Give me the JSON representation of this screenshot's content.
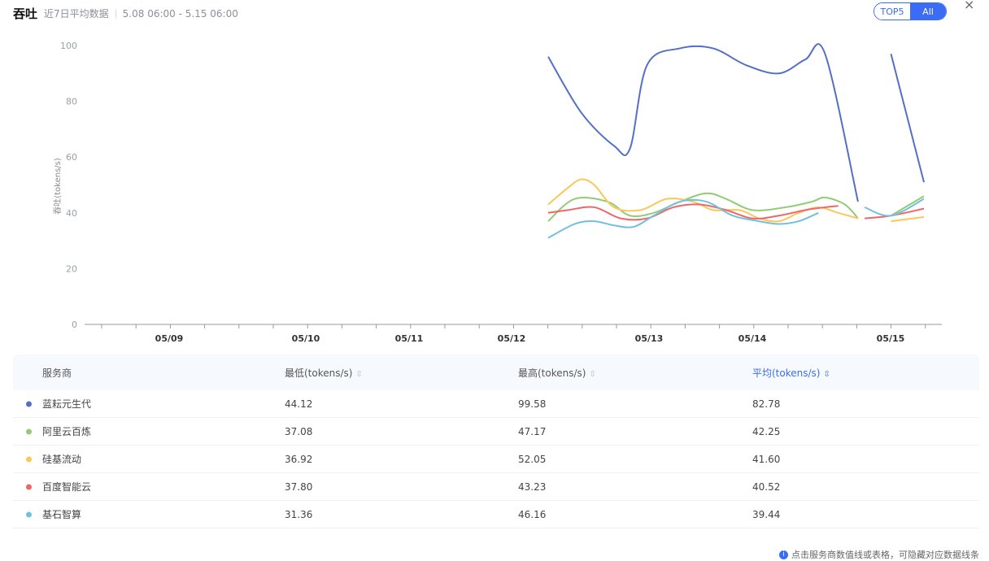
{
  "header": {
    "title": "吞吐",
    "subtitle": "近7日平均数据",
    "range": "5.08 06:00 - 5.15 06:00"
  },
  "toggle": {
    "options": [
      "TOP5",
      "All"
    ],
    "selected": "All"
  },
  "colors": {
    "accent": "#3b6cf6",
    "series": [
      "#5470c6",
      "#91cc75",
      "#fac858",
      "#ee6666",
      "#73c0de"
    ]
  },
  "chart_data": {
    "type": "line",
    "ylabel": "吞吐(tokens/s)",
    "ylim": [
      0,
      100
    ],
    "yticks": [
      0,
      20,
      40,
      60,
      80,
      100
    ],
    "xlabels": [
      "05/09",
      "05/10",
      "05/11",
      "05/12",
      "05/13",
      "05/14",
      "05/15"
    ],
    "grid": false,
    "series": [
      {
        "name": "蓝耘元生代",
        "points": [
          [
            4.0,
            96
          ],
          [
            4.25,
            76
          ],
          [
            4.5,
            64
          ],
          [
            4.62,
            63
          ],
          [
            4.75,
            93
          ],
          [
            5.0,
            99
          ],
          [
            5.25,
            99
          ],
          [
            5.5,
            93
          ],
          [
            5.75,
            90
          ],
          [
            5.95,
            95
          ],
          [
            6.1,
            97
          ],
          [
            6.35,
            44
          ],
          null,
          [
            6.6,
            97
          ],
          [
            6.85,
            51
          ]
        ]
      },
      {
        "name": "阿里云百炼",
        "points": [
          [
            4.0,
            37
          ],
          [
            4.2,
            45
          ],
          [
            4.45,
            44
          ],
          [
            4.62,
            39
          ],
          [
            4.8,
            40
          ],
          [
            5.0,
            44
          ],
          [
            5.2,
            47
          ],
          [
            5.35,
            45
          ],
          [
            5.55,
            41
          ],
          [
            5.8,
            42
          ],
          [
            6.0,
            44
          ],
          [
            6.1,
            45.5
          ],
          [
            6.25,
            43
          ],
          [
            6.35,
            38
          ],
          null,
          [
            6.6,
            39
          ],
          [
            6.85,
            46
          ]
        ]
      },
      {
        "name": "硅基流动",
        "points": [
          [
            4.0,
            43
          ],
          [
            4.15,
            49
          ],
          [
            4.25,
            52
          ],
          [
            4.35,
            50
          ],
          [
            4.5,
            42
          ],
          [
            4.7,
            41
          ],
          [
            4.9,
            45
          ],
          [
            5.1,
            44
          ],
          [
            5.25,
            41
          ],
          [
            5.45,
            41
          ],
          [
            5.6,
            38
          ],
          [
            5.75,
            37
          ],
          [
            5.9,
            40
          ],
          [
            6.05,
            42
          ],
          [
            6.2,
            40
          ],
          [
            6.35,
            38
          ],
          null,
          [
            6.6,
            37
          ],
          [
            6.85,
            38.5
          ]
        ]
      },
      {
        "name": "百度智能云",
        "points": [
          [
            4.0,
            40
          ],
          [
            4.15,
            41
          ],
          [
            4.35,
            42
          ],
          [
            4.55,
            38
          ],
          [
            4.75,
            38
          ],
          [
            4.95,
            42
          ],
          [
            5.15,
            43
          ],
          [
            5.35,
            41
          ],
          [
            5.55,
            38
          ],
          [
            5.75,
            39
          ],
          [
            5.95,
            41
          ],
          [
            6.1,
            42
          ],
          [
            6.2,
            42.5
          ],
          null,
          [
            6.4,
            38
          ],
          [
            6.6,
            39
          ],
          [
            6.85,
            41.5
          ]
        ]
      },
      {
        "name": "基石智算",
        "points": [
          [
            4.0,
            31
          ],
          [
            4.2,
            36
          ],
          [
            4.35,
            37
          ],
          [
            4.5,
            35.5
          ],
          [
            4.65,
            35
          ],
          [
            4.8,
            39
          ],
          [
            5.0,
            44
          ],
          [
            5.2,
            44
          ],
          [
            5.4,
            39
          ],
          [
            5.6,
            37
          ],
          [
            5.75,
            36
          ],
          [
            5.9,
            37
          ],
          [
            6.05,
            40
          ],
          null,
          [
            6.4,
            42
          ],
          [
            6.6,
            39
          ],
          [
            6.85,
            45
          ]
        ]
      }
    ]
  },
  "table": {
    "headers": [
      "服务商",
      "最低(tokens/s)",
      "最高(tokens/s)",
      "平均(tokens/s)"
    ],
    "sort_icon": "⇳",
    "rows": [
      {
        "name": "蓝耘元生代",
        "min": "44.12",
        "max": "99.58",
        "avg": "82.78"
      },
      {
        "name": "阿里云百炼",
        "min": "37.08",
        "max": "47.17",
        "avg": "42.25"
      },
      {
        "name": "硅基流动",
        "min": "36.92",
        "max": "52.05",
        "avg": "41.60"
      },
      {
        "name": "百度智能云",
        "min": "37.80",
        "max": "43.23",
        "avg": "40.52"
      },
      {
        "name": "基石智算",
        "min": "31.36",
        "max": "46.16",
        "avg": "39.44"
      }
    ]
  },
  "footnote": {
    "icon": "info-icon",
    "text": "点击服务商数值线或表格，可隐藏对应数据线条"
  }
}
